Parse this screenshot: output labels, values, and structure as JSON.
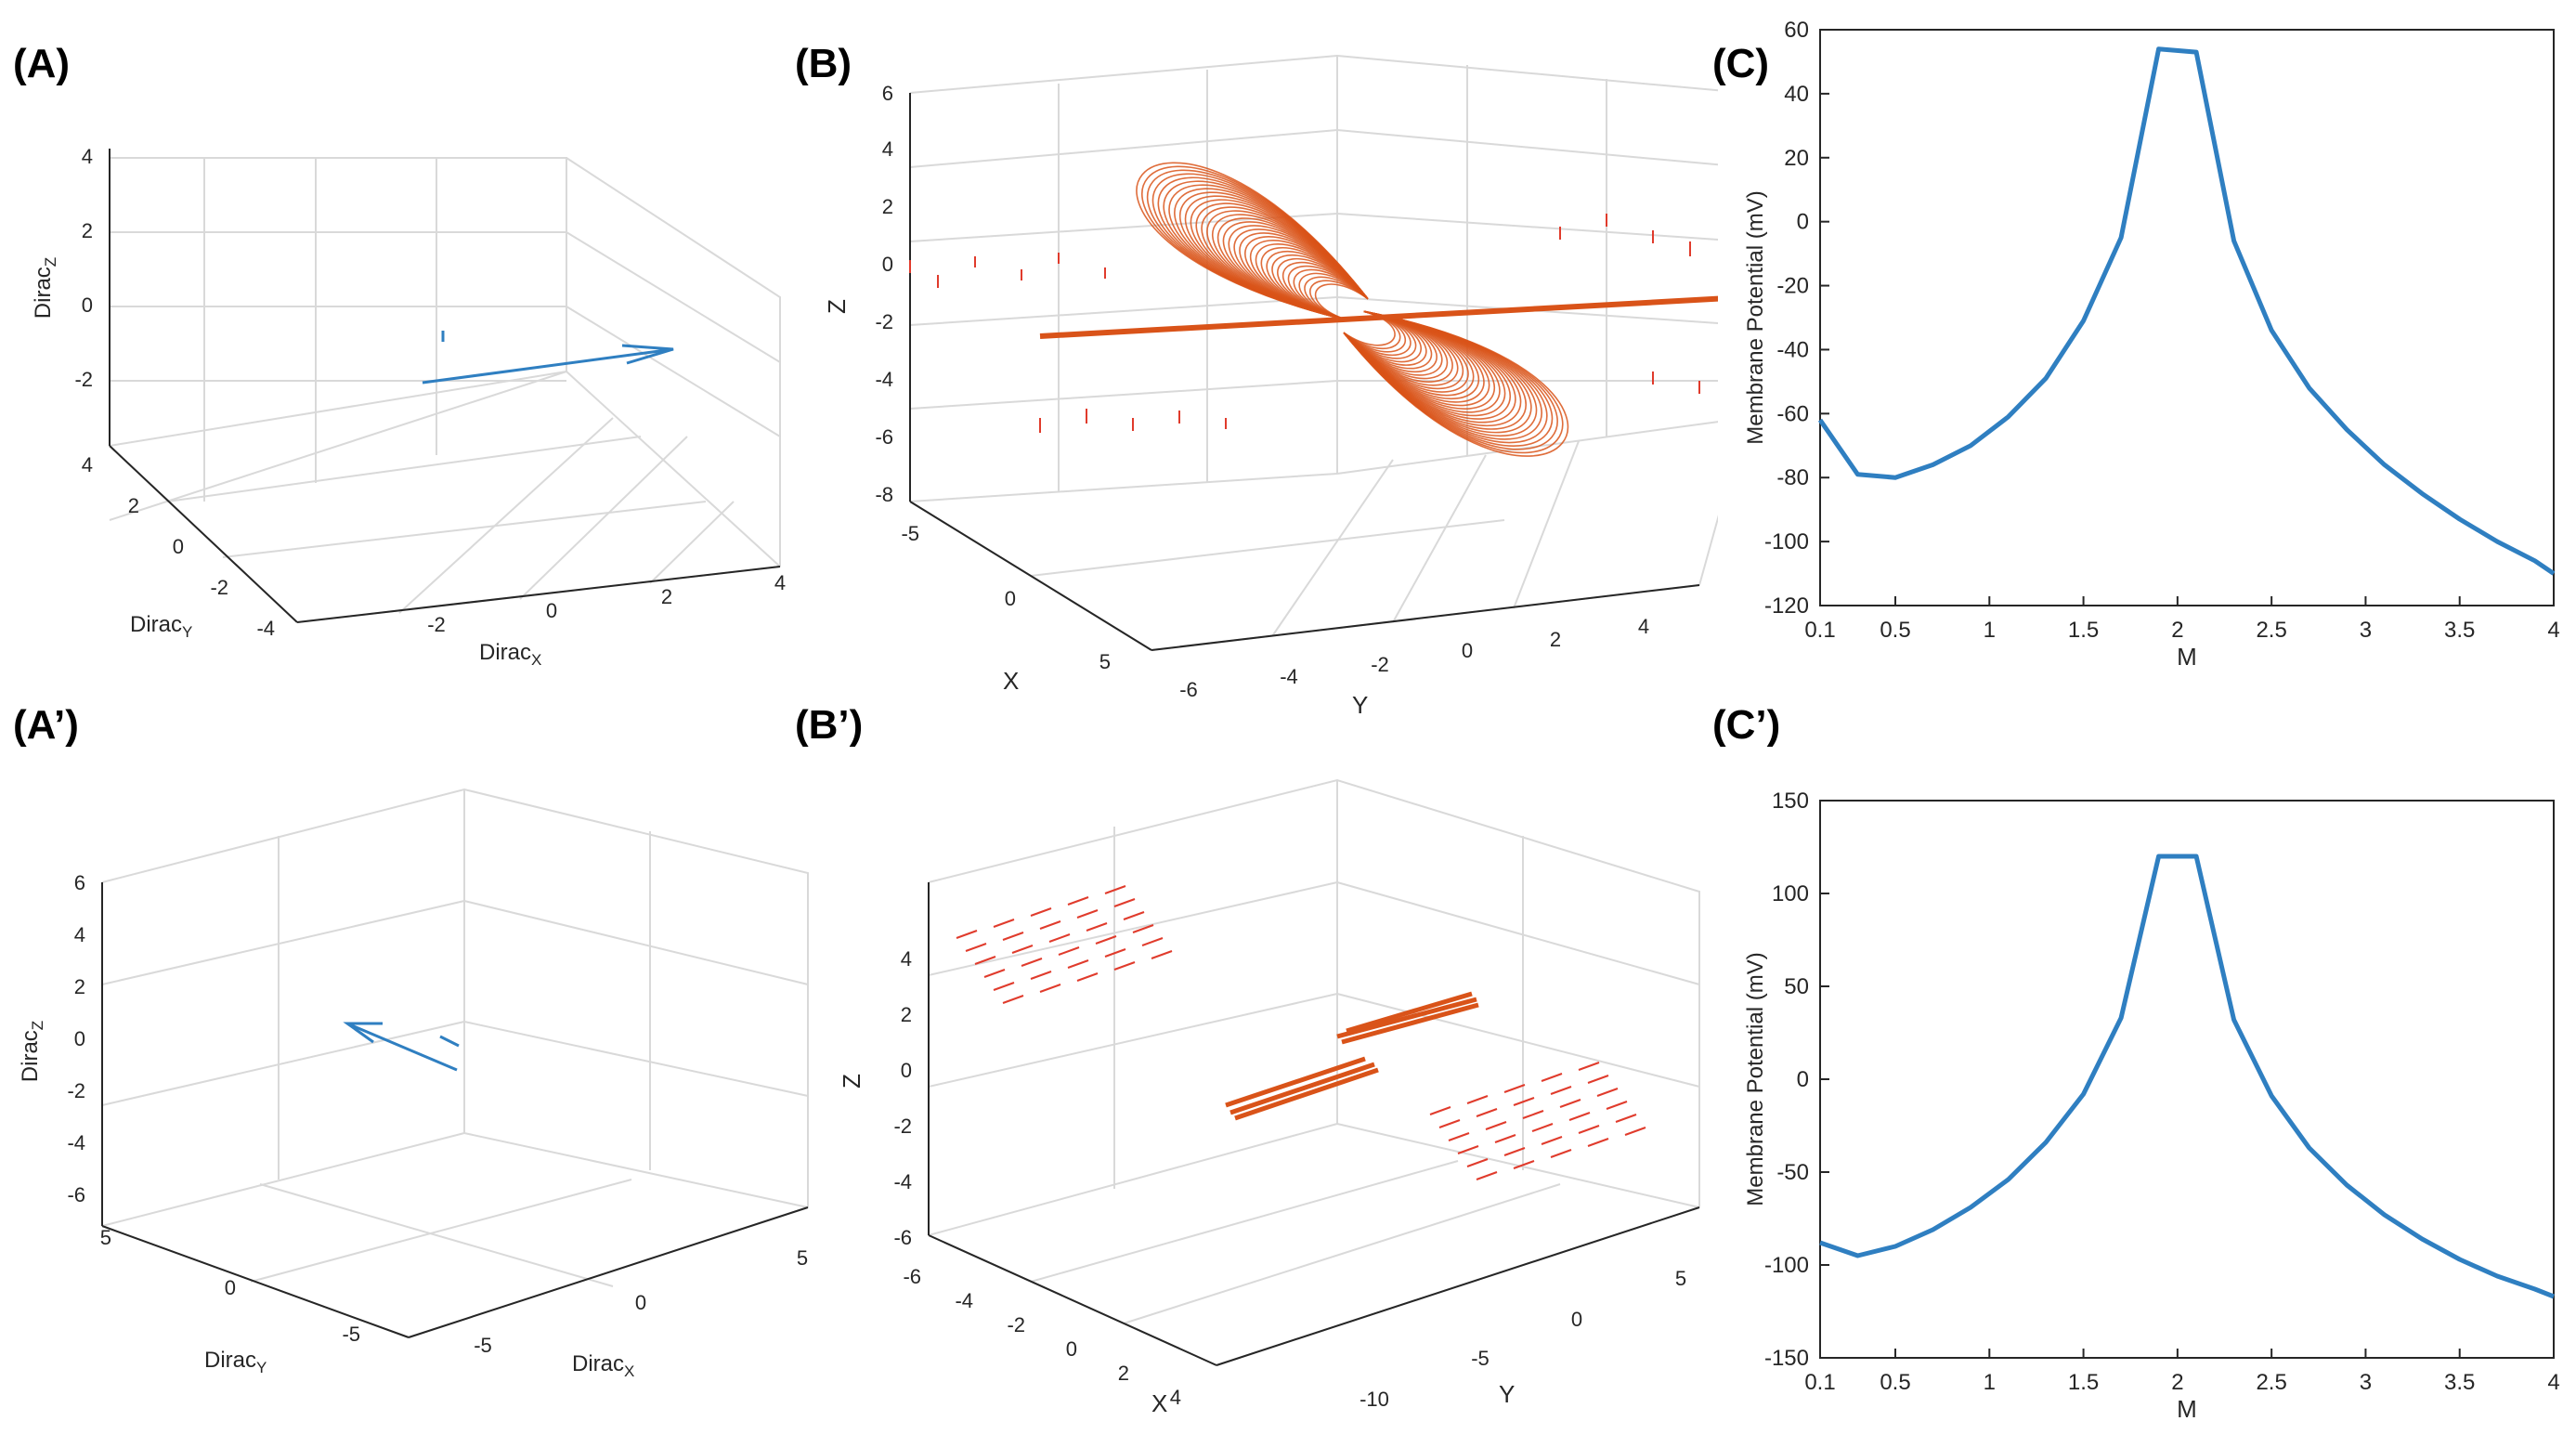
{
  "labels": {
    "A": "(A)",
    "B": "(B)",
    "C": "(C)",
    "A2": "(A’)",
    "B2": "(B’)",
    "C2": "(C’)"
  },
  "colors": {
    "blue": "#2f7fc1",
    "orange": "#d95319",
    "red": "#e03b2c",
    "grid": "#d9d9d9",
    "axis": "#262626"
  },
  "panelA": {
    "zticks": [
      "4",
      "2",
      "0",
      "-2"
    ],
    "yticks": [
      "4",
      "2",
      "0",
      "-2",
      "-4"
    ],
    "xticks": [
      "-2",
      "0",
      "2",
      "4"
    ],
    "zlabel": {
      "base": "Dirac",
      "sub": "Z"
    },
    "ylabel": {
      "base": "Dirac",
      "sub": "Y"
    },
    "xlabel": {
      "base": "Dirac",
      "sub": "X"
    }
  },
  "panelB": {
    "zticks": [
      "6",
      "4",
      "2",
      "0",
      "-2",
      "-4",
      "-6",
      "-8"
    ],
    "xticks": [
      "-5",
      "0",
      "5"
    ],
    "yticks": [
      "-6",
      "-4",
      "-2",
      "0",
      "2",
      "4"
    ],
    "zlabel": "Z",
    "xlabel": "X",
    "ylabel": "Y"
  },
  "panelA2": {
    "zticks": [
      "6",
      "4",
      "2",
      "0",
      "-2",
      "-4",
      "-6"
    ],
    "yticks": [
      "5",
      "0",
      "-5"
    ],
    "xticks": [
      "-5",
      "0",
      "5"
    ],
    "zlabel": {
      "base": "Dirac",
      "sub": "Z"
    },
    "ylabel": {
      "base": "Dirac",
      "sub": "Y"
    },
    "xlabel": {
      "base": "Dirac",
      "sub": "X"
    }
  },
  "panelB2": {
    "zticks": [
      "4",
      "2",
      "0",
      "-2",
      "-4",
      "-6"
    ],
    "xticks": [
      "-6",
      "-4",
      "-2",
      "0",
      "2",
      "4"
    ],
    "yticks": [
      "-10",
      "-5",
      "0",
      "5"
    ],
    "zlabel": "Z",
    "xlabel": "X",
    "ylabel": "Y"
  },
  "chart_data": [
    {
      "type": "line",
      "x": [
        0.1,
        0.3,
        0.5,
        0.7,
        0.9,
        1.1,
        1.3,
        1.5,
        1.7,
        1.9,
        2.1,
        2.3,
        2.5,
        2.7,
        2.9,
        3.1,
        3.3,
        3.5,
        3.7,
        3.9,
        4.0
      ],
      "values": [
        -62,
        -79,
        -80,
        -76,
        -70,
        -61,
        -49,
        -31,
        -5,
        54,
        53,
        -6,
        -34,
        -52,
        -65,
        -76,
        -85,
        -93,
        -100,
        -106,
        -110
      ],
      "xlabel": "M",
      "ylabel": "Membrane Potential (mV)",
      "xlim": [
        0.1,
        4
      ],
      "ylim": [
        -120,
        60
      ],
      "xticks": [
        "0.1",
        "0.5",
        "1",
        "1.5",
        "2",
        "2.5",
        "3",
        "3.5",
        "4"
      ],
      "yticks": [
        "60",
        "40",
        "20",
        "0",
        "-20",
        "-40",
        "-60",
        "-80",
        "-100",
        "-120"
      ],
      "grid": false
    },
    {
      "type": "line",
      "x": [
        0.1,
        0.3,
        0.5,
        0.7,
        0.9,
        1.1,
        1.3,
        1.5,
        1.7,
        1.9,
        2.1,
        2.3,
        2.5,
        2.7,
        2.9,
        3.1,
        3.3,
        3.5,
        3.7,
        3.9,
        4.0
      ],
      "values": [
        -88,
        -95,
        -90,
        -81,
        -69,
        -54,
        -34,
        -8,
        33,
        120,
        120,
        32,
        -9,
        -37,
        -57,
        -73,
        -86,
        -97,
        -106,
        -113,
        -117
      ],
      "xlabel": "M",
      "ylabel": "Membrane Potential (mV)",
      "xlim": [
        0.1,
        4
      ],
      "ylim": [
        -150,
        150
      ],
      "xticks": [
        "0.1",
        "0.5",
        "1",
        "1.5",
        "2",
        "2.5",
        "3",
        "3.5",
        "4"
      ],
      "yticks": [
        "150",
        "100",
        "50",
        "0",
        "-50",
        "-100",
        "-150"
      ],
      "grid": false
    }
  ]
}
